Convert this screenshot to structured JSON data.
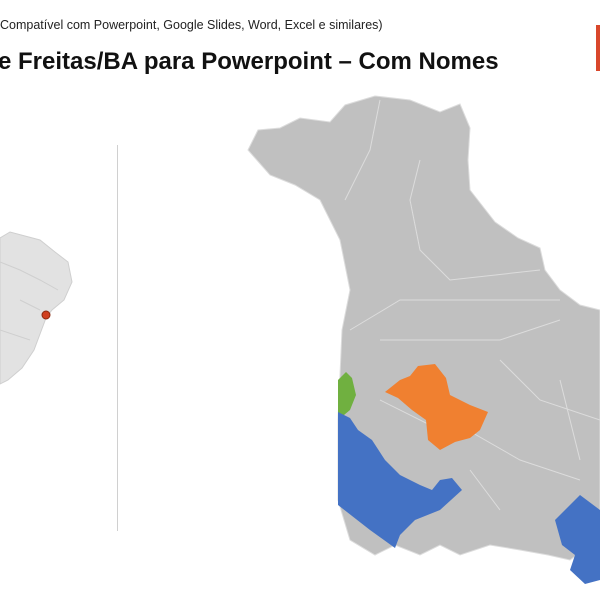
{
  "header": {
    "subtitle": "Compatível com Powerpoint, Google Slides, Word, Excel e similares)",
    "title": "e Freitas/BA para Powerpoint – Com Nomes"
  },
  "colors": {
    "accent": "#d9472b",
    "region_default": "#c0c0c0",
    "highlight_orange": "#f08030",
    "highlight_green": "#70b040",
    "highlight_blue": "#4472c4",
    "location_marker": "#d04020"
  },
  "icons": {
    "location_marker": "location-dot-icon"
  }
}
